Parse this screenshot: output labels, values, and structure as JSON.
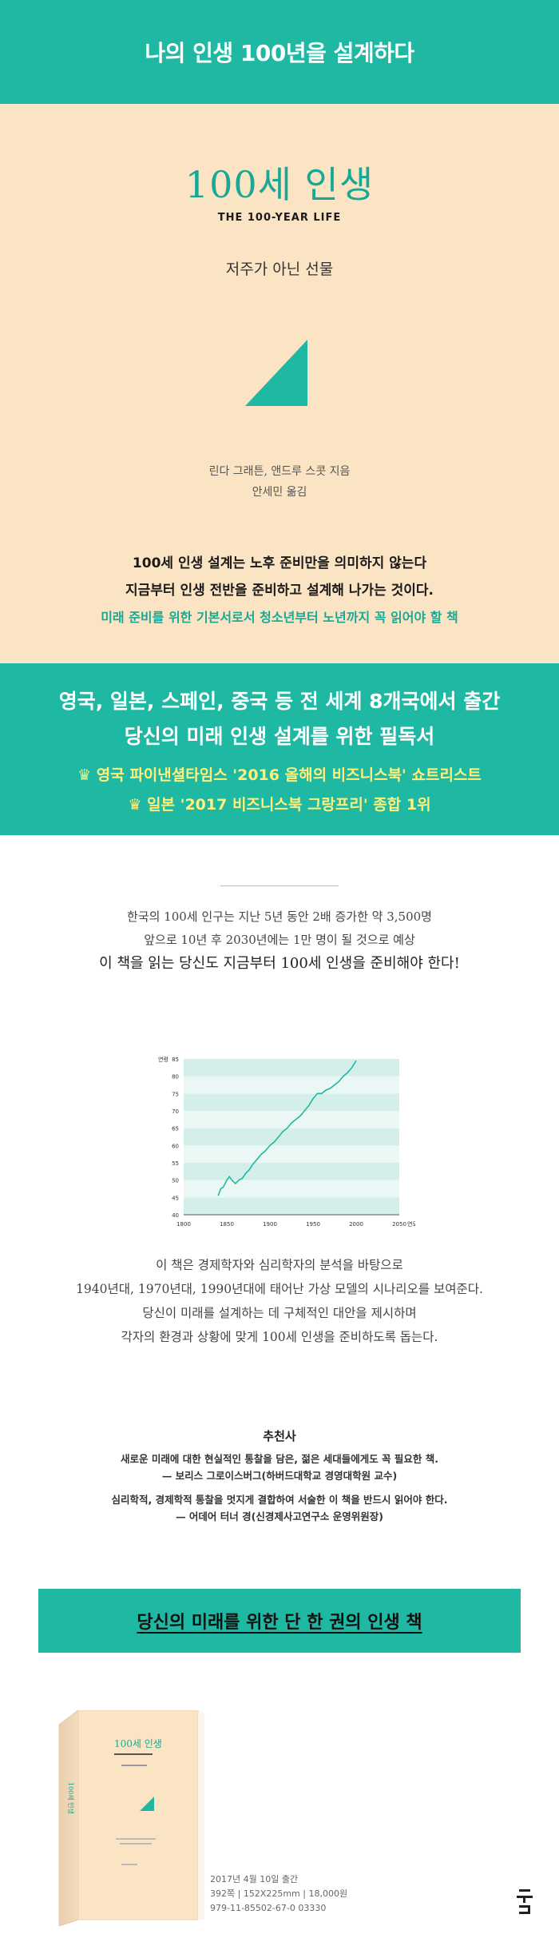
{
  "header": {
    "title": "나의 인생 100년을 설계하다"
  },
  "book": {
    "title": "100세 인생",
    "subtitle_en": "THE 100-YEAR LIFE",
    "subtitle_kr": "저주가 아닌 선물",
    "authors": "린다 그래튼, 앤드루 스콧 지음",
    "translator": "안세민 옮김"
  },
  "intro": {
    "line1": "100세 인생 설계는 노후 준비만을 의미하지 않는다",
    "line2": "지금부터 인생 전반을 준비하고 설계해 나가는 것이다.",
    "line3": "미래 준비를 위한 기본서로서 청소년부터 노년까지 꼭 읽어야 할 책"
  },
  "banner": {
    "line1": "영국, 일본, 스페인, 중국 등 전 세계 8개국에서 출간",
    "line2": "당신의 미래 인생 설계를 위한 필독서",
    "award1": "♛ 영국 파이낸셜타임스 '2016 올해의 비즈니스북' 쇼트리스트",
    "award2": "♛ 일본 '2017 비즈니스북 그랑프리' 종합 1위"
  },
  "stat": {
    "line1": "한국의 100세 인구는 지난 5년 동안 2배 증가한 약 3,500명",
    "line2": "앞으로 10년 후 2030년에는 1만 명이 될 것으로 예상",
    "line3": "이 책을 읽는 당신도 지금부터 100세 인생을 준비해야 한다!"
  },
  "chart_data": {
    "type": "line",
    "ylabel": "연령",
    "xlabel": "연도",
    "xlim": [
      1800,
      2050
    ],
    "ylim": [
      40,
      85
    ],
    "x_ticks": [
      1800,
      1850,
      1900,
      1950,
      2000,
      2050
    ],
    "y_ticks": [
      40,
      45,
      50,
      55,
      60,
      65,
      70,
      75,
      80,
      85
    ],
    "x": [
      1840,
      1843,
      1846,
      1850,
      1853,
      1856,
      1860,
      1864,
      1868,
      1872,
      1876,
      1880,
      1885,
      1890,
      1895,
      1900,
      1905,
      1910,
      1915,
      1920,
      1925,
      1930,
      1935,
      1940,
      1945,
      1950,
      1955,
      1960,
      1965,
      1970,
      1975,
      1980,
      1985,
      1990,
      1995,
      2000
    ],
    "y": [
      45.5,
      47.5,
      48,
      50,
      51,
      50,
      49,
      50,
      50.5,
      52,
      53,
      54.5,
      56,
      57.5,
      58.5,
      60,
      61,
      62.5,
      64,
      65,
      66.5,
      67.5,
      68.5,
      70,
      71.5,
      73.5,
      75,
      75,
      76,
      76.5,
      77.5,
      78.5,
      80,
      81,
      82.5,
      84.5
    ],
    "grid": "horizontal bands"
  },
  "desc": {
    "line1": "이 책은 경제학자와 심리학자의 분석을 바탕으로",
    "line2": "1940년대, 1970년대, 1990년대에 태어난 가상 모델의 시나리오를 보여준다.",
    "line3": "당신이 미래를 설계하는 데 구체적인 대안을 제시하며",
    "line4": "각자의 환경과 상황에 맞게 100세 인생을 준비하도록 돕는다."
  },
  "recommend": {
    "title": "추천사",
    "r1_quote": "새로운 미래에 대한 현실적인 통찰을 담은, 젊은 세대들에게도 꼭 필요한 책.",
    "r1_by": "— 보리스 그로이스버그(하버드대학교 경영대학원 교수)",
    "r2_quote": "심리학적, 경제학적 통찰을 멋지게 결합하여 서술한 이 책을 반드시 읽어야 한다.",
    "r2_by": "— 어데어 터너 경(신경제사고연구소 운영위원장)"
  },
  "closing": {
    "title": "당신의 미래를 위한 단 한 권의 인생 책"
  },
  "publication": {
    "date": "2017년 4월 10일 출간",
    "specs": "392쪽 | 152X225mm | 18,000원",
    "isbn": "979-11-85502-67-0 03330"
  },
  "colors": {
    "accent": "#1fb8a3",
    "cream": "#fbe4c4",
    "award": "#fff07a"
  }
}
